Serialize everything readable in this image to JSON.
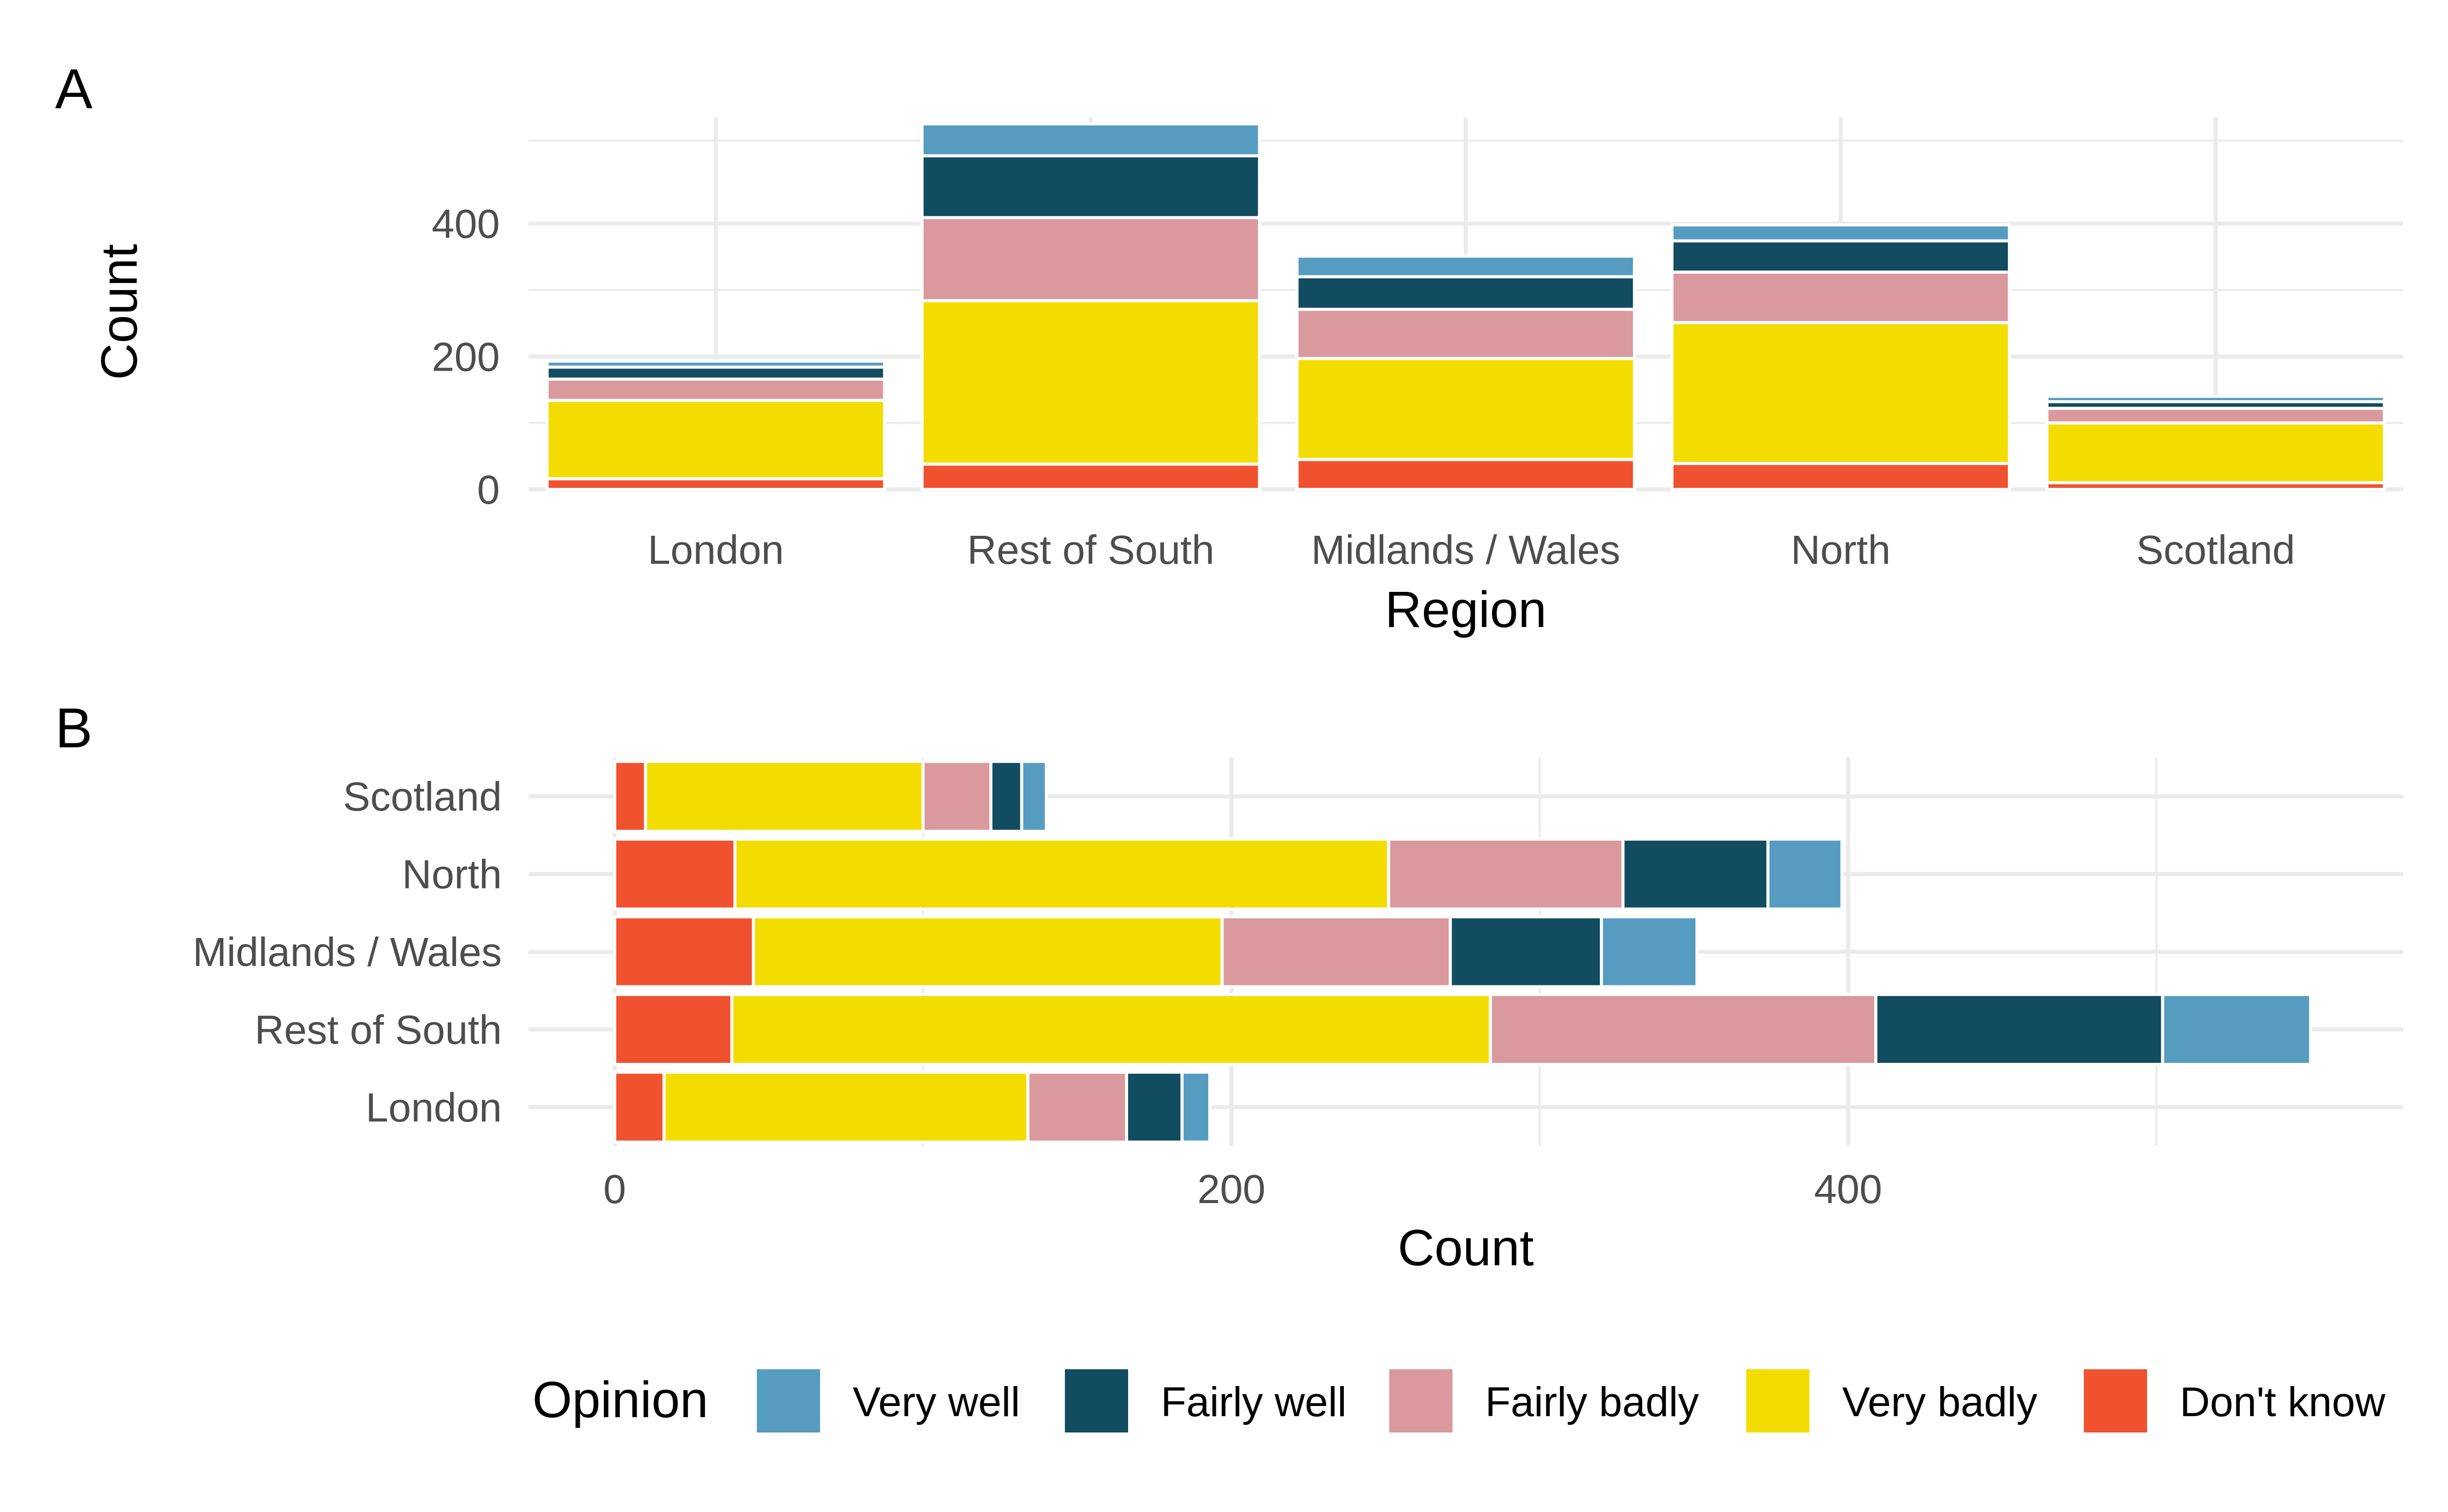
{
  "panel_tags": [
    "A",
    "B"
  ],
  "legend": {
    "title": "Opinion",
    "items": [
      {
        "label": "Very well",
        "color": "#569cc0"
      },
      {
        "label": "Fairly well",
        "color": "#124c60"
      },
      {
        "label": "Fairly badly",
        "color": "#d9999d"
      },
      {
        "label": "Very badly",
        "color": "#f3dd00"
      },
      {
        "label": "Don't know",
        "color": "#f0522f"
      }
    ]
  },
  "chart_data": [
    {
      "panel": "A",
      "type": "bar",
      "orientation": "vertical",
      "stacked": true,
      "xlabel": "Region",
      "ylabel": "Count",
      "categories": [
        "London",
        "Rest of South",
        "Midlands / Wales",
        "North",
        "Scotland"
      ],
      "y_ticks": [
        0,
        200,
        400
      ],
      "ylim": [
        0,
        560
      ],
      "grid": true,
      "series": [
        {
          "name": "Don't know",
          "color": "#f0522f",
          "values": [
            16,
            38,
            45,
            39,
            10
          ]
        },
        {
          "name": "Very badly",
          "color": "#f3dd00",
          "values": [
            118,
            246,
            152,
            212,
            90
          ]
        },
        {
          "name": "Fairly badly",
          "color": "#d9999d",
          "values": [
            32,
            125,
            74,
            76,
            22
          ]
        },
        {
          "name": "Fairly well",
          "color": "#124c60",
          "values": [
            18,
            93,
            49,
            47,
            10
          ]
        },
        {
          "name": "Very well",
          "color": "#569cc0",
          "values": [
            9,
            48,
            31,
            24,
            8
          ]
        }
      ]
    },
    {
      "panel": "B",
      "type": "bar",
      "orientation": "horizontal",
      "stacked": true,
      "xlabel": "Count",
      "ylabel": "",
      "categories": [
        "London",
        "Rest of South",
        "Midlands / Wales",
        "North",
        "Scotland"
      ],
      "x_ticks": [
        0,
        200,
        400
      ],
      "xlim": [
        -28,
        580
      ],
      "grid": true,
      "series": [
        {
          "name": "Don't know",
          "color": "#f0522f",
          "values": [
            16,
            38,
            45,
            39,
            10
          ]
        },
        {
          "name": "Very badly",
          "color": "#f3dd00",
          "values": [
            118,
            246,
            152,
            212,
            90
          ]
        },
        {
          "name": "Fairly badly",
          "color": "#d9999d",
          "values": [
            32,
            125,
            74,
            76,
            22
          ]
        },
        {
          "name": "Fairly well",
          "color": "#124c60",
          "values": [
            18,
            93,
            49,
            47,
            10
          ]
        },
        {
          "name": "Very well",
          "color": "#569cc0",
          "values": [
            9,
            48,
            31,
            24,
            8
          ]
        }
      ]
    }
  ]
}
